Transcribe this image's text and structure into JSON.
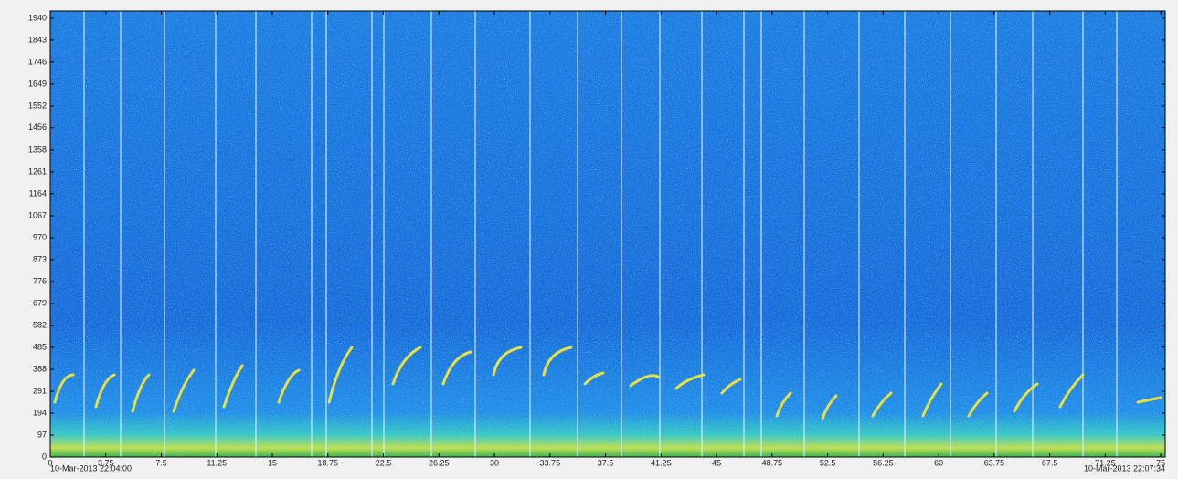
{
  "chart_data": {
    "type": "spectrogram",
    "xlim": [
      0,
      75.3
    ],
    "xticks": [
      0,
      3.75,
      7.5,
      11.25,
      15,
      18.75,
      22.5,
      26.25,
      30,
      33.75,
      37.5,
      41.25,
      45,
      48.75,
      52.5,
      56.25,
      60,
      63.75,
      67.5,
      71.25,
      75
    ],
    "ylim": [
      0,
      1972
    ],
    "yticks": [
      0,
      97,
      194,
      291,
      388,
      485,
      582,
      679,
      776,
      873,
      970,
      1067,
      1164,
      1261,
      1358,
      1456,
      1552,
      1649,
      1746,
      1843,
      1940
    ],
    "start_time": "10-Mar-2013 22:04:00",
    "end_time": "10-Mar-2013 22:07:34"
  }
}
